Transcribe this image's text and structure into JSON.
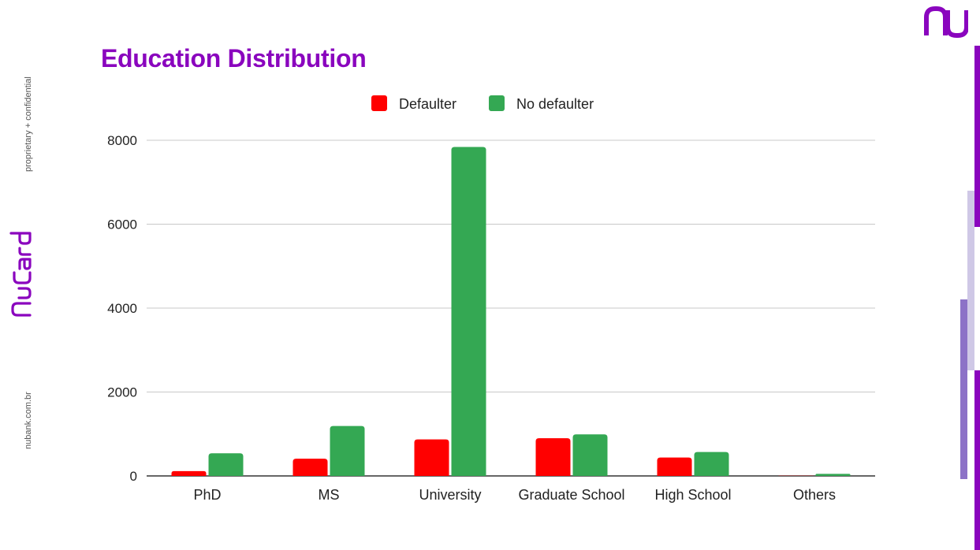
{
  "page": {
    "title": "Education Distribution",
    "side_confidential": "proprietary + confidential",
    "side_url": "nubank.com.br",
    "brand_name": "NuCard",
    "logo": "nu",
    "brand_color": "#8a05be"
  },
  "chart_data": {
    "type": "bar",
    "title": "Education Distribution",
    "xlabel": "",
    "ylabel": "",
    "categories": [
      "PhD",
      "MS",
      "University",
      "Graduate School",
      "High School",
      "Others"
    ],
    "series": [
      {
        "name": "Defaulter",
        "color": "#ff0000",
        "values": [
          115,
          410,
          870,
          900,
          440,
          5
        ]
      },
      {
        "name": "No defaulter",
        "color": "#34a853",
        "values": [
          540,
          1190,
          7840,
          990,
          570,
          50
        ]
      }
    ],
    "ylim": [
      0,
      8000
    ],
    "yticks": [
      "0",
      "2000",
      "4000",
      "6000",
      "8000"
    ],
    "grid": true,
    "legend_position": "top"
  }
}
